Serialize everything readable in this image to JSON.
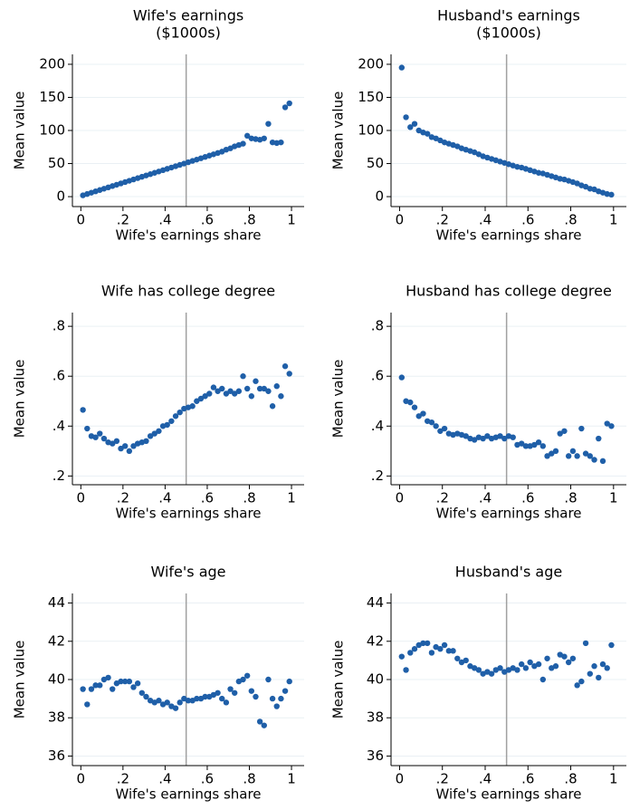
{
  "chart_data": [
    {
      "type": "scatter",
      "title": [
        "Wife's earnings",
        "($1000s)"
      ],
      "x_label": "Wife's earnings share",
      "y_label": "Mean value",
      "color": "#1f5fa8",
      "grid": true,
      "vline": 0.5,
      "vline_color": "#a0a0a0",
      "xlim": [
        -0.04,
        1.06
      ],
      "ylim": [
        -15,
        215
      ],
      "xticks": [
        0,
        {
          "value": 0.2,
          "label": ".2"
        },
        {
          "value": 0.4,
          "label": ".4"
        },
        {
          "value": 0.6,
          "label": ".6"
        },
        {
          "value": 0.8,
          "label": ".8"
        },
        1
      ],
      "yticks": [
        0,
        50,
        100,
        150,
        200
      ],
      "x": [
        0.01,
        0.03,
        0.05,
        0.07,
        0.09,
        0.11,
        0.13,
        0.15,
        0.17,
        0.19,
        0.21,
        0.23,
        0.25,
        0.27,
        0.29,
        0.31,
        0.33,
        0.35,
        0.37,
        0.39,
        0.41,
        0.43,
        0.45,
        0.47,
        0.49,
        0.51,
        0.53,
        0.55,
        0.57,
        0.59,
        0.61,
        0.63,
        0.65,
        0.67,
        0.69,
        0.71,
        0.73,
        0.75,
        0.77,
        0.79,
        0.81,
        0.83,
        0.85,
        0.87,
        0.89,
        0.91,
        0.93,
        0.95,
        0.97,
        0.99
      ],
      "values": [
        2,
        4,
        6,
        8,
        10,
        12,
        14,
        16,
        18,
        20,
        22,
        24,
        26,
        28,
        30,
        32,
        34,
        36,
        38,
        40,
        42,
        44,
        46,
        48,
        50,
        52,
        54,
        56,
        58,
        60,
        62,
        64,
        66,
        68,
        71,
        73,
        76,
        78,
        80,
        92,
        88,
        87,
        86,
        88,
        110,
        82,
        81,
        82,
        135,
        141
      ]
    },
    {
      "type": "scatter",
      "title": [
        "Husband's earnings",
        "($1000s)"
      ],
      "x_label": "Wife's earnings share",
      "y_label": "Mean value",
      "color": "#1f5fa8",
      "grid": true,
      "vline": 0.5,
      "vline_color": "#a0a0a0",
      "xlim": [
        -0.04,
        1.06
      ],
      "ylim": [
        -15,
        215
      ],
      "xticks": [
        0,
        {
          "value": 0.2,
          "label": ".2"
        },
        {
          "value": 0.4,
          "label": ".4"
        },
        {
          "value": 0.6,
          "label": ".6"
        },
        {
          "value": 0.8,
          "label": ".8"
        },
        1
      ],
      "yticks": [
        0,
        50,
        100,
        150,
        200
      ],
      "x": [
        0.01,
        0.03,
        0.05,
        0.07,
        0.09,
        0.11,
        0.13,
        0.15,
        0.17,
        0.19,
        0.21,
        0.23,
        0.25,
        0.27,
        0.29,
        0.31,
        0.33,
        0.35,
        0.37,
        0.39,
        0.41,
        0.43,
        0.45,
        0.47,
        0.49,
        0.51,
        0.53,
        0.55,
        0.57,
        0.59,
        0.61,
        0.63,
        0.65,
        0.67,
        0.69,
        0.71,
        0.73,
        0.75,
        0.77,
        0.79,
        0.81,
        0.83,
        0.85,
        0.87,
        0.89,
        0.91,
        0.93,
        0.95,
        0.97,
        0.99
      ],
      "values": [
        195,
        120,
        105,
        110,
        100,
        97,
        95,
        90,
        88,
        85,
        82,
        80,
        78,
        76,
        73,
        71,
        69,
        67,
        64,
        61,
        59,
        57,
        55,
        53,
        51,
        49,
        47,
        45,
        44,
        42,
        40,
        38,
        36,
        35,
        33,
        31,
        29,
        27,
        26,
        24,
        22,
        20,
        17,
        15,
        12,
        11,
        8,
        6,
        4,
        3
      ]
    },
    {
      "type": "scatter",
      "title": [
        "Wife has college degree"
      ],
      "x_label": "Wife's earnings share",
      "y_label": "Mean value",
      "color": "#1f5fa8",
      "grid": true,
      "vline": 0.5,
      "vline_color": "#a0a0a0",
      "xlim": [
        -0.04,
        1.06
      ],
      "ylim": [
        0.165,
        0.855
      ],
      "xticks": [
        0,
        {
          "value": 0.2,
          "label": ".2"
        },
        {
          "value": 0.4,
          "label": ".4"
        },
        {
          "value": 0.6,
          "label": ".6"
        },
        {
          "value": 0.8,
          "label": ".8"
        },
        1
      ],
      "yticks": [
        {
          "value": 0.2,
          "label": ".2"
        },
        {
          "value": 0.4,
          "label": ".4"
        },
        {
          "value": 0.6,
          "label": ".6"
        },
        {
          "value": 0.8,
          "label": ".8"
        }
      ],
      "x": [
        0.01,
        0.03,
        0.05,
        0.07,
        0.09,
        0.11,
        0.13,
        0.15,
        0.17,
        0.19,
        0.21,
        0.23,
        0.25,
        0.27,
        0.29,
        0.31,
        0.33,
        0.35,
        0.37,
        0.39,
        0.41,
        0.43,
        0.45,
        0.47,
        0.49,
        0.51,
        0.53,
        0.55,
        0.57,
        0.59,
        0.61,
        0.63,
        0.65,
        0.67,
        0.69,
        0.71,
        0.73,
        0.75,
        0.77,
        0.79,
        0.81,
        0.83,
        0.85,
        0.87,
        0.89,
        0.91,
        0.93,
        0.95,
        0.97,
        0.99
      ],
      "values": [
        0.465,
        0.39,
        0.36,
        0.355,
        0.37,
        0.35,
        0.335,
        0.33,
        0.34,
        0.31,
        0.32,
        0.3,
        0.32,
        0.33,
        0.335,
        0.34,
        0.36,
        0.37,
        0.38,
        0.4,
        0.405,
        0.42,
        0.44,
        0.455,
        0.47,
        0.475,
        0.48,
        0.5,
        0.51,
        0.52,
        0.53,
        0.555,
        0.54,
        0.55,
        0.53,
        0.54,
        0.53,
        0.54,
        0.6,
        0.55,
        0.52,
        0.58,
        0.55,
        0.55,
        0.54,
        0.48,
        0.56,
        0.52,
        0.64,
        0.61
      ]
    },
    {
      "type": "scatter",
      "title": [
        "Husband has college degree"
      ],
      "x_label": "Wife's earnings share",
      "y_label": "Mean value",
      "color": "#1f5fa8",
      "grid": true,
      "vline": 0.5,
      "vline_color": "#a0a0a0",
      "xlim": [
        -0.04,
        1.06
      ],
      "ylim": [
        0.165,
        0.855
      ],
      "xticks": [
        0,
        {
          "value": 0.2,
          "label": ".2"
        },
        {
          "value": 0.4,
          "label": ".4"
        },
        {
          "value": 0.6,
          "label": ".6"
        },
        {
          "value": 0.8,
          "label": ".8"
        },
        1
      ],
      "yticks": [
        {
          "value": 0.2,
          "label": ".2"
        },
        {
          "value": 0.4,
          "label": ".4"
        },
        {
          "value": 0.6,
          "label": ".6"
        },
        {
          "value": 0.8,
          "label": ".8"
        }
      ],
      "x": [
        0.01,
        0.03,
        0.05,
        0.07,
        0.09,
        0.11,
        0.13,
        0.15,
        0.17,
        0.19,
        0.21,
        0.23,
        0.25,
        0.27,
        0.29,
        0.31,
        0.33,
        0.35,
        0.37,
        0.39,
        0.41,
        0.43,
        0.45,
        0.47,
        0.49,
        0.51,
        0.53,
        0.55,
        0.57,
        0.59,
        0.61,
        0.63,
        0.65,
        0.67,
        0.69,
        0.71,
        0.73,
        0.75,
        0.77,
        0.79,
        0.81,
        0.83,
        0.85,
        0.87,
        0.89,
        0.91,
        0.93,
        0.95,
        0.97,
        0.99
      ],
      "values": [
        0.595,
        0.5,
        0.495,
        0.475,
        0.44,
        0.45,
        0.42,
        0.415,
        0.4,
        0.38,
        0.39,
        0.37,
        0.365,
        0.37,
        0.365,
        0.36,
        0.35,
        0.345,
        0.355,
        0.35,
        0.36,
        0.35,
        0.355,
        0.36,
        0.35,
        0.36,
        0.355,
        0.325,
        0.33,
        0.32,
        0.32,
        0.325,
        0.335,
        0.32,
        0.28,
        0.29,
        0.3,
        0.37,
        0.38,
        0.28,
        0.3,
        0.28,
        0.39,
        0.29,
        0.28,
        0.265,
        0.35,
        0.26,
        0.41,
        0.4
      ]
    },
    {
      "type": "scatter",
      "title": [
        "Wife's age"
      ],
      "x_label": "Wife's earnings share",
      "y_label": "Mean value",
      "color": "#1f5fa8",
      "grid": true,
      "vline": 0.5,
      "vline_color": "#a0a0a0",
      "xlim": [
        -0.04,
        1.06
      ],
      "ylim": [
        35.5,
        44.5
      ],
      "xticks": [
        0,
        {
          "value": 0.2,
          "label": ".2"
        },
        {
          "value": 0.4,
          "label": ".4"
        },
        {
          "value": 0.6,
          "label": ".6"
        },
        {
          "value": 0.8,
          "label": ".8"
        },
        1
      ],
      "yticks": [
        36,
        38,
        40,
        42,
        44
      ],
      "x": [
        0.01,
        0.03,
        0.05,
        0.07,
        0.09,
        0.11,
        0.13,
        0.15,
        0.17,
        0.19,
        0.21,
        0.23,
        0.25,
        0.27,
        0.29,
        0.31,
        0.33,
        0.35,
        0.37,
        0.39,
        0.41,
        0.43,
        0.45,
        0.47,
        0.49,
        0.51,
        0.53,
        0.55,
        0.57,
        0.59,
        0.61,
        0.63,
        0.65,
        0.67,
        0.69,
        0.71,
        0.73,
        0.75,
        0.77,
        0.79,
        0.81,
        0.83,
        0.85,
        0.87,
        0.89,
        0.91,
        0.93,
        0.95,
        0.97,
        0.99
      ],
      "values": [
        39.5,
        38.7,
        39.5,
        39.7,
        39.7,
        40.0,
        40.1,
        39.5,
        39.8,
        39.9,
        39.9,
        39.9,
        39.6,
        39.8,
        39.3,
        39.1,
        38.9,
        38.8,
        38.9,
        38.7,
        38.8,
        38.6,
        38.5,
        38.8,
        39.0,
        38.9,
        38.9,
        39.0,
        39.0,
        39.1,
        39.1,
        39.2,
        39.3,
        39.0,
        38.8,
        39.5,
        39.3,
        39.9,
        40.0,
        40.2,
        39.4,
        39.1,
        37.8,
        37.6,
        40.0,
        39.0,
        38.6,
        39.0,
        39.4,
        39.9
      ]
    },
    {
      "type": "scatter",
      "title": [
        "Husband's age"
      ],
      "x_label": "Wife's earnings share",
      "y_label": "Mean value",
      "color": "#1f5fa8",
      "grid": true,
      "vline": 0.5,
      "vline_color": "#a0a0a0",
      "xlim": [
        -0.04,
        1.06
      ],
      "ylim": [
        35.5,
        44.5
      ],
      "xticks": [
        0,
        {
          "value": 0.2,
          "label": ".2"
        },
        {
          "value": 0.4,
          "label": ".4"
        },
        {
          "value": 0.6,
          "label": ".6"
        },
        {
          "value": 0.8,
          "label": ".8"
        },
        1
      ],
      "yticks": [
        36,
        38,
        40,
        42,
        44
      ],
      "x": [
        0.01,
        0.03,
        0.05,
        0.07,
        0.09,
        0.11,
        0.13,
        0.15,
        0.17,
        0.19,
        0.21,
        0.23,
        0.25,
        0.27,
        0.29,
        0.31,
        0.33,
        0.35,
        0.37,
        0.39,
        0.41,
        0.43,
        0.45,
        0.47,
        0.49,
        0.51,
        0.53,
        0.55,
        0.57,
        0.59,
        0.61,
        0.63,
        0.65,
        0.67,
        0.69,
        0.71,
        0.73,
        0.75,
        0.77,
        0.79,
        0.81,
        0.83,
        0.85,
        0.87,
        0.89,
        0.91,
        0.93,
        0.95,
        0.97,
        0.99
      ],
      "values": [
        41.2,
        40.5,
        41.4,
        41.6,
        41.8,
        41.9,
        41.9,
        41.4,
        41.7,
        41.6,
        41.8,
        41.5,
        41.5,
        41.1,
        40.9,
        41.0,
        40.7,
        40.6,
        40.5,
        40.3,
        40.4,
        40.3,
        40.5,
        40.6,
        40.4,
        40.5,
        40.6,
        40.5,
        40.8,
        40.6,
        40.9,
        40.7,
        40.8,
        40.0,
        41.1,
        40.6,
        40.7,
        41.3,
        41.2,
        40.9,
        41.1,
        39.7,
        39.9,
        41.9,
        40.3,
        40.7,
        40.1,
        40.8,
        40.6,
        41.8
      ]
    }
  ]
}
